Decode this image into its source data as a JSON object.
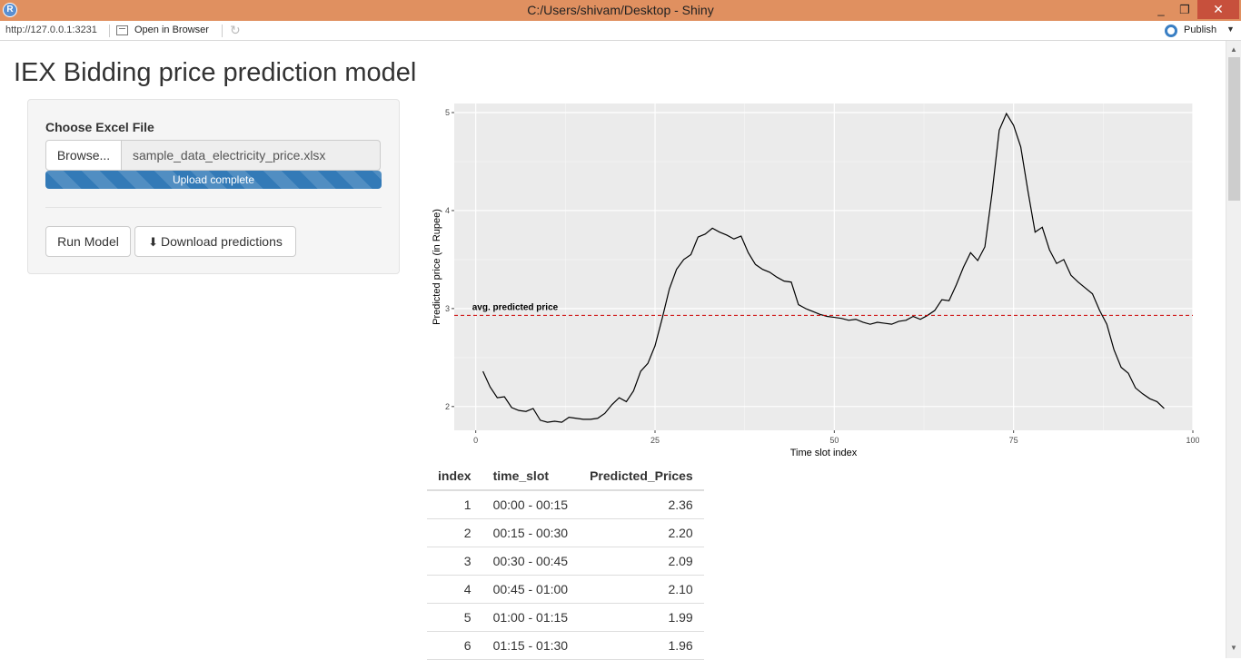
{
  "window": {
    "title": "C:/Users/shivam/Desktop - Shiny",
    "minimize": "_",
    "maximize": "❐",
    "close": "✕",
    "app_icon": "R"
  },
  "toolbar": {
    "url": "http://127.0.0.1:3231",
    "open_label": "Open in Browser",
    "publish_label": "Publish"
  },
  "page": {
    "title": "IEX Bidding price prediction model"
  },
  "sidebar": {
    "file_label": "Choose Excel File",
    "browse_label": "Browse...",
    "file_name": "sample_data_electricity_price.xlsx",
    "upload_status": "Upload complete",
    "upload_progress_percent": 100,
    "run_label": "Run Model",
    "download_label": "Download predictions"
  },
  "chart_data": {
    "type": "line",
    "xlabel": "Time slot index",
    "ylabel": "Predicted price (in Rupee)",
    "xlim": [
      -3,
      100
    ],
    "ylim": [
      1.85,
      5.0
    ],
    "xticks": [
      0,
      25,
      50,
      75,
      100
    ],
    "yticks": [
      2,
      3,
      4,
      5
    ],
    "grid": true,
    "annotation": {
      "text": "avg. predicted price",
      "y": 2.93,
      "style": "dashed",
      "color": "#cc0000"
    },
    "series": [
      {
        "x": [
          1,
          2,
          3,
          4,
          5,
          6,
          7,
          8,
          9,
          10,
          11,
          12,
          13,
          14,
          15,
          16,
          17,
          18,
          19,
          20,
          21,
          22,
          23,
          24,
          25,
          26,
          27,
          28,
          29,
          30,
          31,
          32,
          33,
          34,
          35,
          36,
          37,
          38,
          39,
          40,
          41,
          42,
          43,
          44,
          45,
          46,
          47,
          48,
          49,
          50,
          51,
          52,
          53,
          54,
          55,
          56,
          57,
          58,
          59,
          60,
          61,
          62,
          63,
          64,
          65,
          66,
          67,
          68,
          69,
          70,
          71,
          72,
          73,
          74,
          75,
          76,
          77,
          78,
          79,
          80,
          81,
          82,
          83,
          84,
          85,
          86,
          87,
          88,
          89,
          90,
          91,
          92,
          93,
          94,
          95,
          96
        ],
        "values": [
          2.36,
          2.2,
          2.09,
          2.1,
          1.99,
          1.96,
          1.95,
          1.98,
          1.86,
          1.84,
          1.85,
          1.84,
          1.89,
          1.88,
          1.87,
          1.87,
          1.88,
          1.93,
          2.02,
          2.09,
          2.05,
          2.16,
          2.36,
          2.44,
          2.62,
          2.9,
          3.2,
          3.4,
          3.5,
          3.55,
          3.73,
          3.76,
          3.82,
          3.78,
          3.75,
          3.71,
          3.74,
          3.57,
          3.45,
          3.4,
          3.37,
          3.32,
          3.28,
          3.27,
          3.04,
          3.0,
          2.97,
          2.94,
          2.92,
          2.91,
          2.9,
          2.88,
          2.89,
          2.86,
          2.84,
          2.86,
          2.85,
          2.84,
          2.87,
          2.88,
          2.92,
          2.89,
          2.93,
          2.98,
          3.09,
          3.08,
          3.24,
          3.42,
          3.57,
          3.49,
          3.63,
          4.18,
          4.82,
          4.99,
          4.87,
          4.65,
          4.2,
          3.78,
          3.83,
          3.6,
          3.46,
          3.5,
          3.34,
          3.27,
          3.21,
          3.15,
          2.98,
          2.84,
          2.58,
          2.4,
          2.34,
          2.19,
          2.13,
          2.08,
          2.05,
          1.98
        ]
      }
    ]
  },
  "table": {
    "columns": [
      "index",
      "time_slot",
      "Predicted_Prices"
    ],
    "rows": [
      [
        "1",
        "00:00 - 00:15",
        "2.36"
      ],
      [
        "2",
        "00:15 - 00:30",
        "2.20"
      ],
      [
        "3",
        "00:30 - 00:45",
        "2.09"
      ],
      [
        "4",
        "00:45 - 01:00",
        "2.10"
      ],
      [
        "5",
        "01:00 - 01:15",
        "1.99"
      ],
      [
        "6",
        "01:15 - 01:30",
        "1.96"
      ]
    ]
  }
}
